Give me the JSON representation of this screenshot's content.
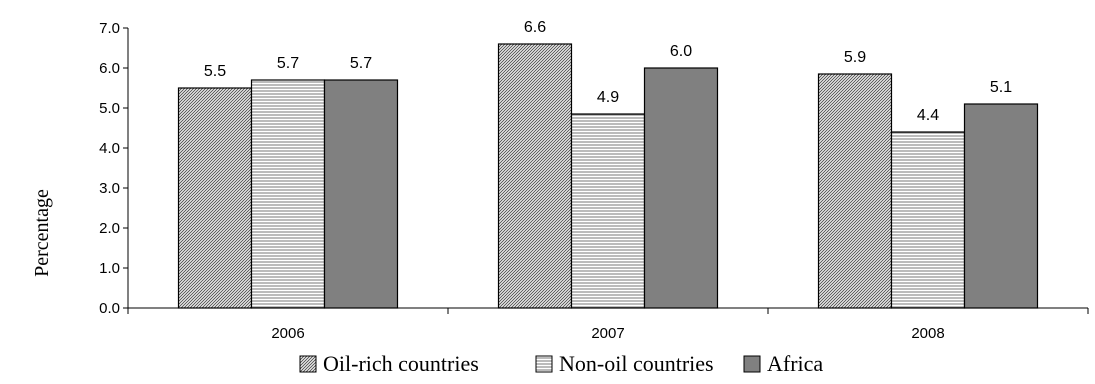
{
  "chart_data": {
    "type": "bar",
    "categories": [
      "2006",
      "2007",
      "2008"
    ],
    "series": [
      {
        "name": "Oil-rich countries",
        "values": [
          5.5,
          6.6,
          5.85
        ],
        "labels": [
          "5.5",
          "6.6",
          "5.9"
        ],
        "pattern": "diagonal"
      },
      {
        "name": "Non-oil countries",
        "values": [
          5.7,
          4.85,
          4.4
        ],
        "labels": [
          "5.7",
          "4.9",
          "4.4"
        ],
        "pattern": "horizontal"
      },
      {
        "name": "Africa",
        "values": [
          5.7,
          6.0,
          5.1
        ],
        "labels": [
          "5.7",
          "6.0",
          "5.1"
        ],
        "pattern": "solid",
        "color": "#808080"
      }
    ],
    "ylabel": "Percentage",
    "ylim": [
      0,
      7
    ],
    "yticks": [
      "0.0",
      "1.0",
      "2.0",
      "3.0",
      "4.0",
      "5.0",
      "6.0",
      "7.0"
    ],
    "grid": false,
    "legend": "bottom"
  }
}
